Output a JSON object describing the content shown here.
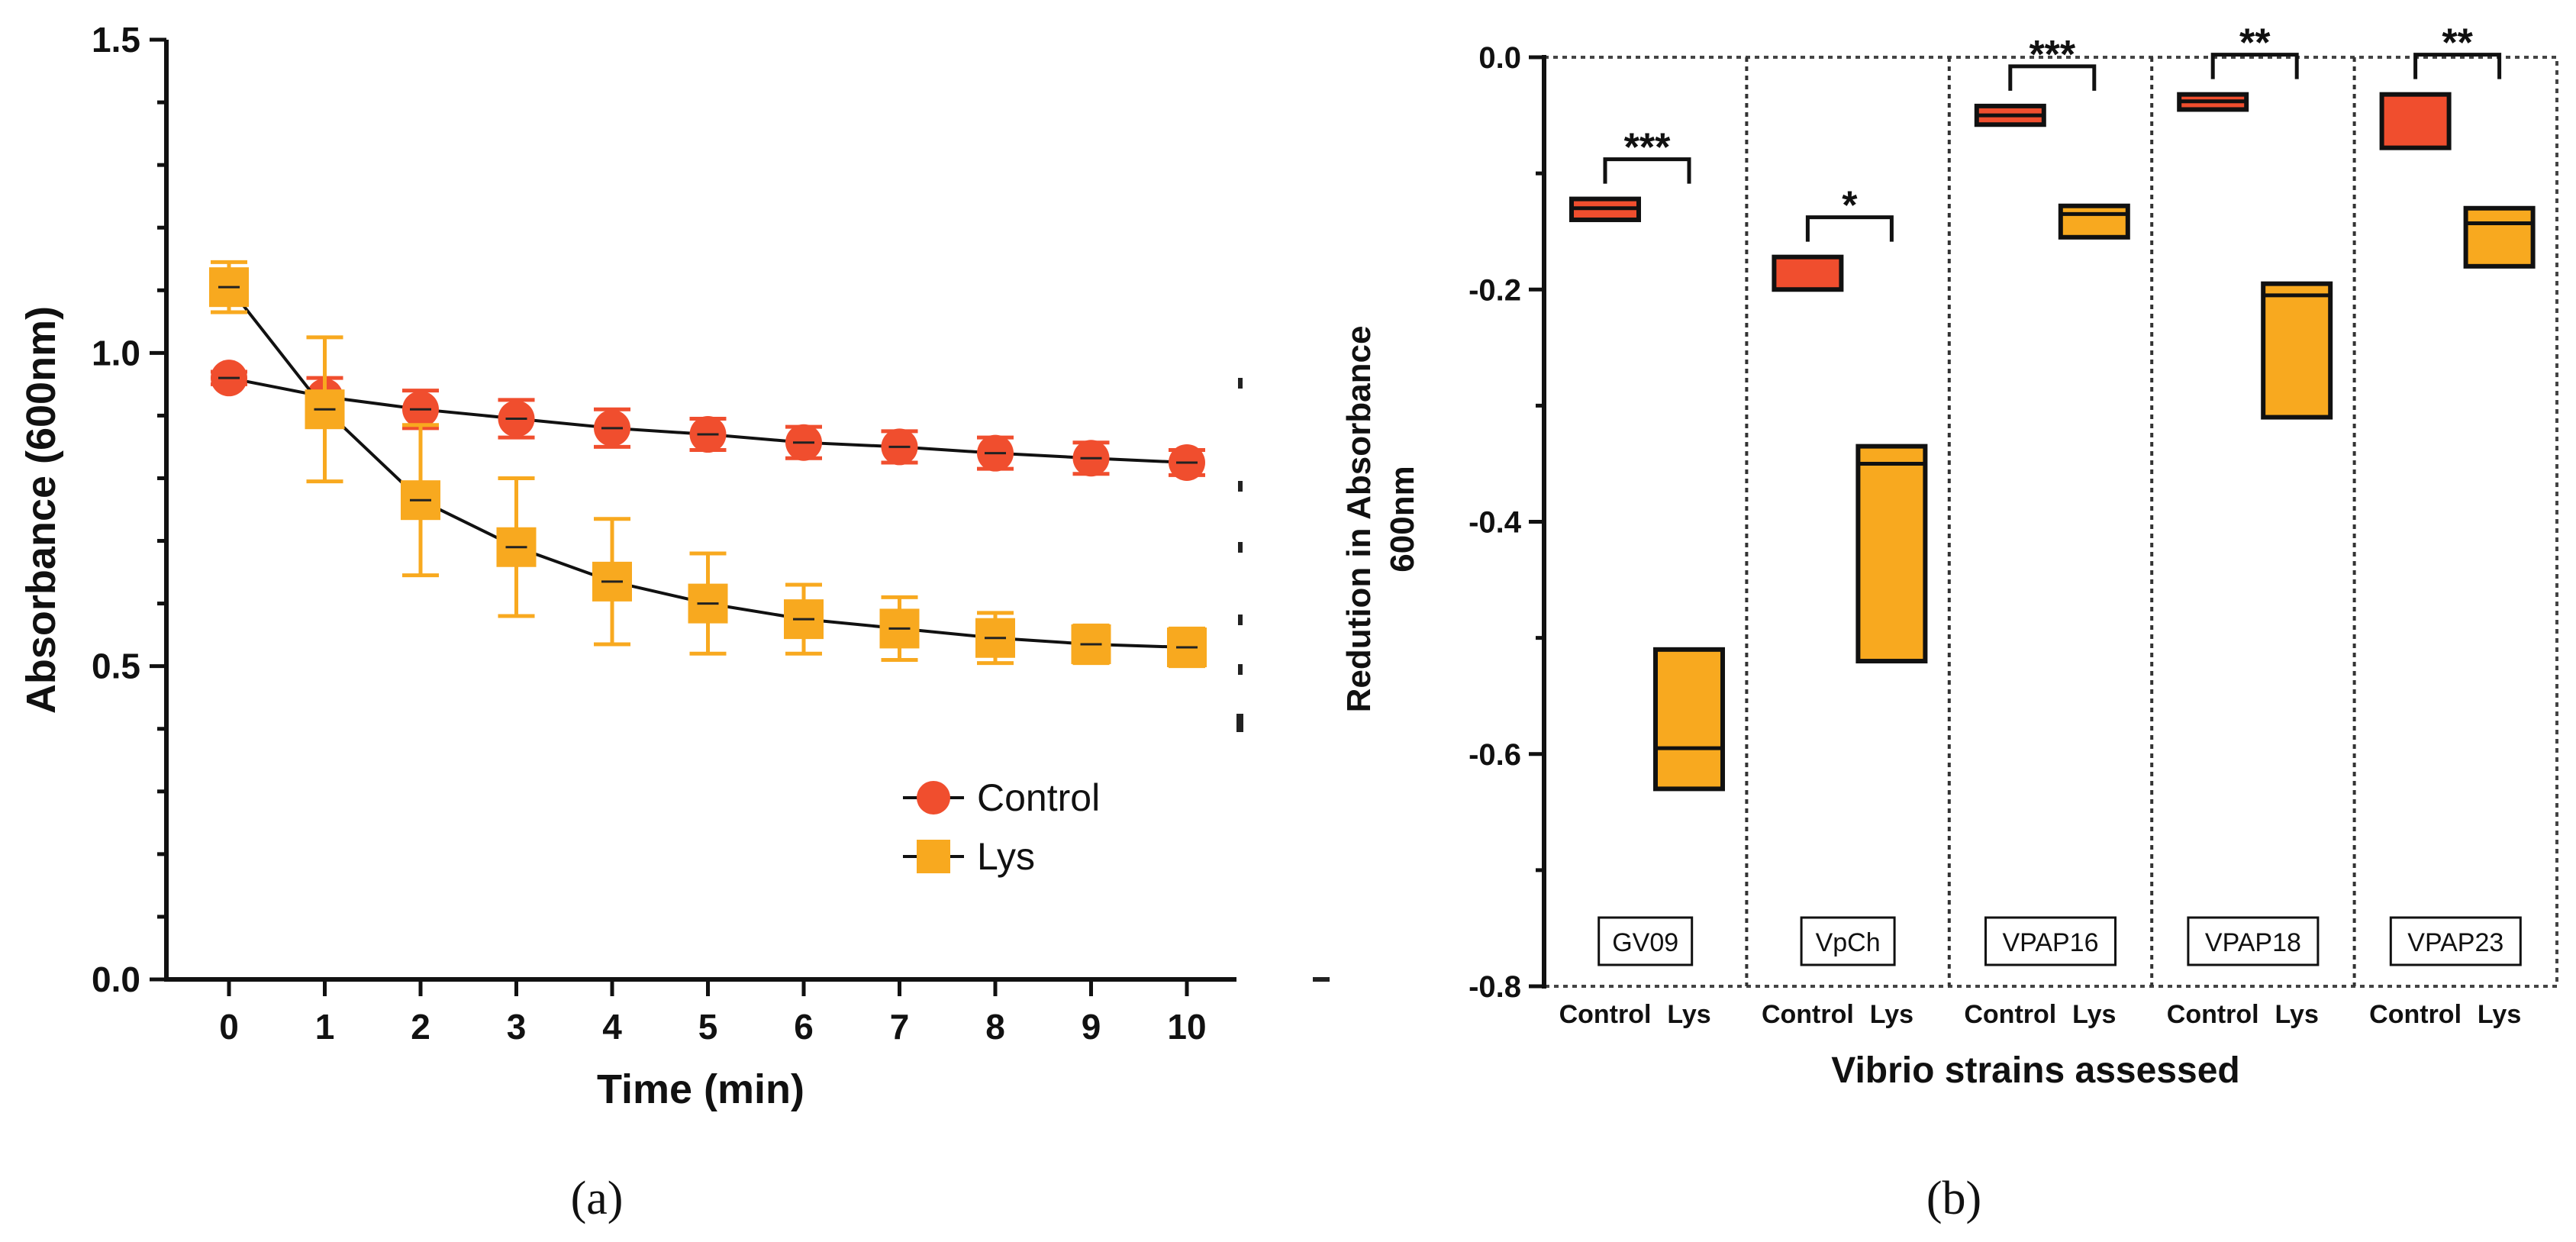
{
  "chart_data": [
    {
      "panel": "a",
      "panel_label": "(a)",
      "type": "line",
      "xlabel": "Time (min)",
      "ylabel": "Absorbance (600nm)",
      "xlim": [
        -0.6,
        10.6
      ],
      "ylim": [
        0.0,
        1.5
      ],
      "xticks": [
        0,
        1,
        2,
        3,
        4,
        5,
        6,
        7,
        8,
        9,
        10
      ],
      "yticks": [
        0.0,
        0.5,
        1.0,
        1.5
      ],
      "ytick_labels": [
        "0.0",
        "0.5",
        "1.0",
        "1.5"
      ],
      "legend_position": "lower-right",
      "series": [
        {
          "name": "Control",
          "marker": "circle",
          "color": "#F04E2E",
          "x": [
            0,
            1,
            2,
            3,
            4,
            5,
            6,
            7,
            8,
            9,
            10
          ],
          "values": [
            0.96,
            0.93,
            0.91,
            0.895,
            0.88,
            0.87,
            0.857,
            0.85,
            0.84,
            0.832,
            0.825
          ],
          "err": [
            0.01,
            0.03,
            0.03,
            0.03,
            0.03,
            0.025,
            0.025,
            0.025,
            0.025,
            0.025,
            0.02
          ]
        },
        {
          "name": "Lys",
          "marker": "square",
          "color": "#F8A91F",
          "x": [
            0,
            1,
            2,
            3,
            4,
            5,
            6,
            7,
            8,
            9,
            10
          ],
          "values": [
            1.105,
            0.91,
            0.765,
            0.69,
            0.635,
            0.6,
            0.575,
            0.56,
            0.545,
            0.535,
            0.53
          ],
          "err": [
            0.04,
            0.115,
            0.12,
            0.11,
            0.1,
            0.08,
            0.055,
            0.05,
            0.04,
            0.03,
            0.03
          ]
        }
      ]
    },
    {
      "panel": "b",
      "panel_label": "(b)",
      "type": "bar",
      "xlabel": "Vibrio strains assessed",
      "ylabel": "Redution in Absorbance",
      "ylabel2": "600nm",
      "ylim": [
        -0.8,
        0.0
      ],
      "yticks": [
        0.0,
        -0.2,
        -0.4,
        -0.6,
        -0.8
      ],
      "ytick_labels": [
        "0.0",
        "-0.2",
        "-0.4",
        "-0.6",
        "-0.8"
      ],
      "groups": [
        {
          "strain": "GV09",
          "significance": "***",
          "control": {
            "label": "Control",
            "min": -0.14,
            "max": -0.122,
            "line": -0.13
          },
          "lys": {
            "label": "Lys",
            "min": -0.63,
            "max": -0.51,
            "line": -0.595
          }
        },
        {
          "strain": "VpCh",
          "significance": "*",
          "control": {
            "label": "Control",
            "min": -0.2,
            "max": -0.172,
            "line": -0.172
          },
          "lys": {
            "label": "Lys",
            "min": -0.52,
            "max": -0.335,
            "line": -0.35
          }
        },
        {
          "strain": "VPAP16",
          "significance": "***",
          "control": {
            "label": "Control",
            "min": -0.058,
            "max": -0.042,
            "line": -0.05
          },
          "lys": {
            "label": "Lys",
            "min": -0.155,
            "max": -0.128,
            "line": -0.135
          }
        },
        {
          "strain": "VPAP18",
          "significance": "**",
          "control": {
            "label": "Control",
            "min": -0.045,
            "max": -0.032,
            "line": -0.038
          },
          "lys": {
            "label": "Lys",
            "min": -0.31,
            "max": -0.195,
            "line": -0.205
          }
        },
        {
          "strain": "VPAP23",
          "significance": "**",
          "control": {
            "label": "Control",
            "min": -0.078,
            "max": -0.032,
            "line": -0.032
          },
          "lys": {
            "label": "Lys",
            "min": -0.18,
            "max": -0.13,
            "line": -0.143
          }
        }
      ]
    }
  ],
  "colors": {
    "control": "#F04E2E",
    "lys": "#F8A91F",
    "axis": "#111111"
  }
}
